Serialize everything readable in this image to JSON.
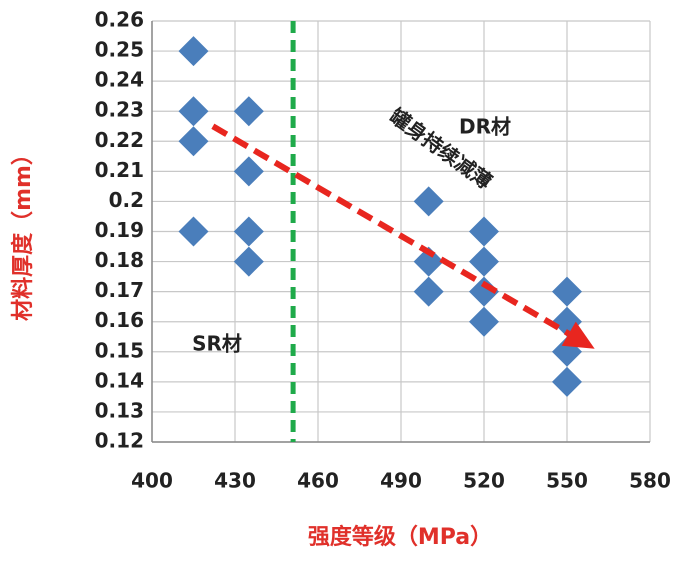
{
  "chart_data": {
    "type": "scatter",
    "x_label": "强度等级（MPa）",
    "y_label": "材料厚度（mm）",
    "x": [
      415,
      415,
      415,
      415,
      435,
      435,
      435,
      435,
      500,
      500,
      500,
      520,
      520,
      520,
      520,
      550,
      550,
      550,
      550
    ],
    "values": [
      0.25,
      0.23,
      0.22,
      0.19,
      0.23,
      0.21,
      0.19,
      0.18,
      0.2,
      0.18,
      0.17,
      0.19,
      0.18,
      0.17,
      0.16,
      0.17,
      0.16,
      0.15,
      0.14
    ],
    "color": "#4a7ebb",
    "xlim": [
      400,
      580
    ],
    "xticks": [
      400,
      430,
      460,
      490,
      520,
      550,
      580
    ],
    "ylim": [
      0.12,
      0.26
    ],
    "yticks": [
      0.12,
      0.13,
      0.14,
      0.15,
      0.16,
      0.17,
      0.18,
      0.19,
      0.2,
      0.21,
      0.22,
      0.23,
      0.24,
      0.25,
      0.26
    ],
    "grid": true,
    "reference_line": {
      "x": 451,
      "color": "#1faa4a"
    },
    "trend_arrow": {
      "x": [
        422,
        560
      ],
      "y": [
        0.225,
        0.151
      ],
      "color": "#e8261f"
    },
    "annotations": [
      "罐身持续减薄",
      "DR材",
      "SR材"
    ]
  }
}
